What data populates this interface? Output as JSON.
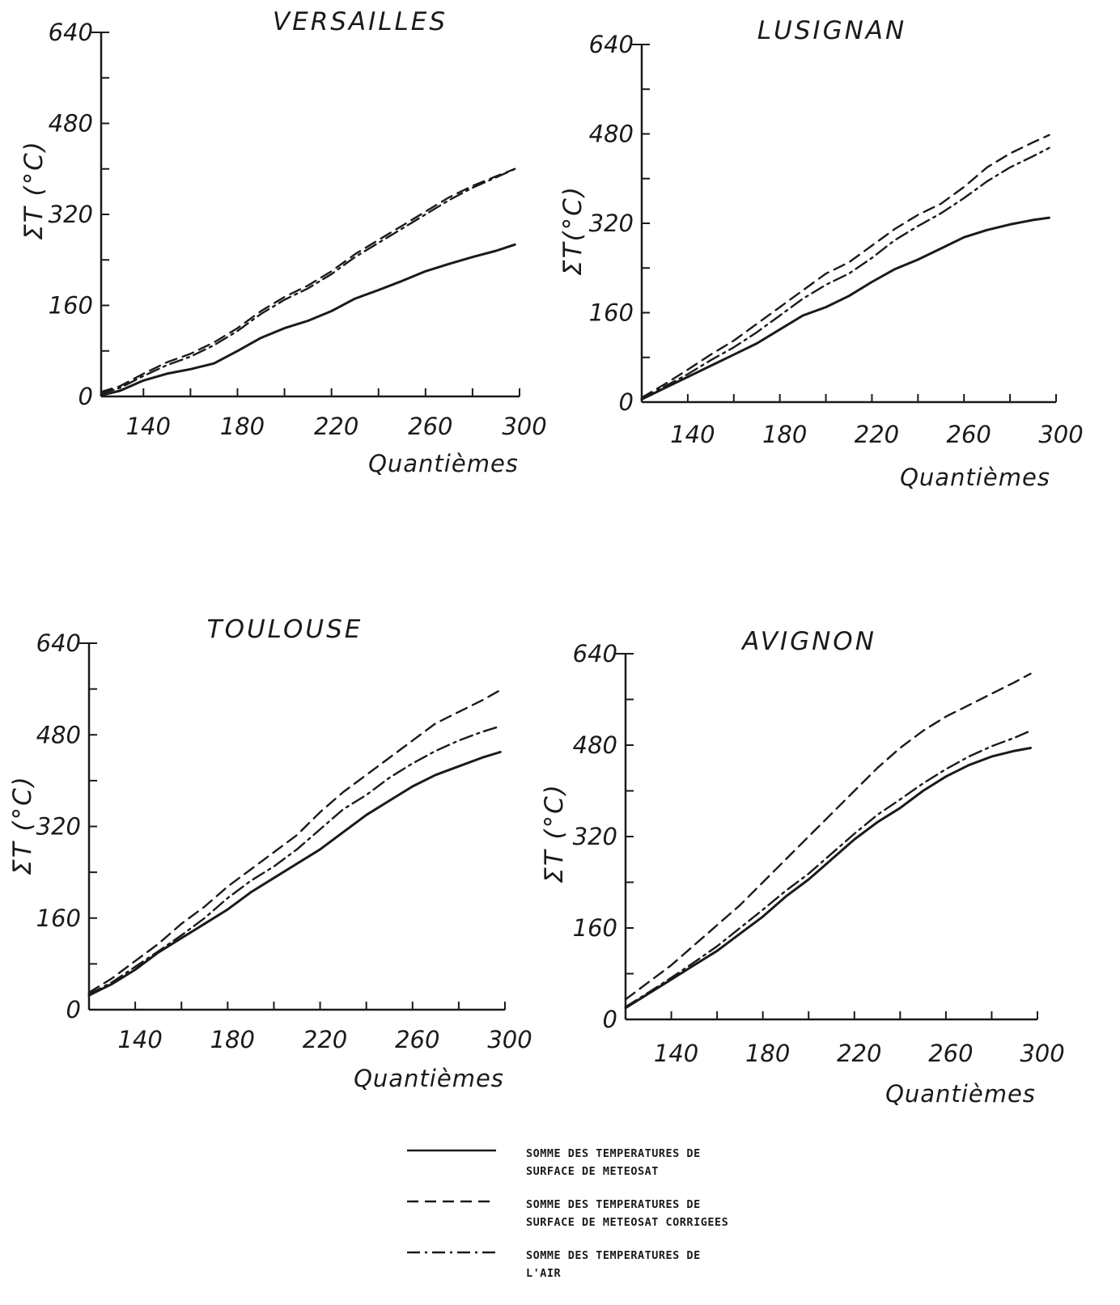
{
  "chart_data": [
    {
      "type": "line",
      "title": "VERSAILLES",
      "xlabel": "Quantièmes",
      "ylabel": "ΣT (°C)",
      "xlim": [
        122,
        300
      ],
      "ylim": [
        0,
        640
      ],
      "xticks": [
        140,
        180,
        220,
        260,
        300
      ],
      "yticks": [
        0,
        160,
        320,
        480,
        640
      ],
      "series": [
        {
          "key": "meteosat",
          "x": [
            122,
            130,
            140,
            150,
            160,
            170,
            180,
            190,
            200,
            210,
            220,
            230,
            240,
            250,
            260,
            270,
            280,
            290,
            298
          ],
          "values": [
            2,
            10,
            28,
            40,
            48,
            58,
            80,
            103,
            120,
            133,
            150,
            172,
            187,
            203,
            220,
            233,
            245,
            256,
            267
          ]
        },
        {
          "key": "meteosat_corrigees",
          "x": [
            122,
            130,
            140,
            150,
            160,
            170,
            180,
            190,
            200,
            210,
            220,
            230,
            240,
            250,
            260,
            270,
            280,
            290,
            298
          ],
          "values": [
            8,
            18,
            40,
            60,
            75,
            95,
            120,
            150,
            175,
            195,
            220,
            250,
            275,
            300,
            325,
            350,
            370,
            387,
            400
          ]
        },
        {
          "key": "air",
          "x": [
            122,
            130,
            140,
            150,
            160,
            170,
            180,
            190,
            200,
            210,
            220,
            230,
            240,
            250,
            260,
            270,
            280,
            290,
            298
          ],
          "values": [
            5,
            15,
            36,
            55,
            70,
            90,
            115,
            145,
            170,
            190,
            215,
            245,
            270,
            295,
            320,
            345,
            367,
            385,
            400
          ]
        }
      ]
    },
    {
      "type": "line",
      "title": "LUSIGNAN",
      "xlabel": "Quantièmes",
      "ylabel": "ΣT(°C)",
      "xlim": [
        120,
        300
      ],
      "ylim": [
        0,
        640
      ],
      "xticks": [
        140,
        180,
        220,
        260,
        300
      ],
      "yticks": [
        0,
        160,
        320,
        480,
        640
      ],
      "series": [
        {
          "key": "meteosat",
          "x": [
            120,
            130,
            140,
            150,
            160,
            170,
            180,
            190,
            200,
            210,
            220,
            230,
            240,
            250,
            260,
            270,
            280,
            290,
            297
          ],
          "values": [
            5,
            25,
            45,
            65,
            85,
            105,
            130,
            155,
            170,
            190,
            215,
            238,
            255,
            275,
            295,
            308,
            318,
            326,
            330
          ]
        },
        {
          "key": "meteosat_corrigees",
          "x": [
            120,
            130,
            140,
            150,
            160,
            170,
            180,
            190,
            200,
            210,
            220,
            230,
            240,
            250,
            260,
            270,
            280,
            290,
            297
          ],
          "values": [
            8,
            32,
            58,
            85,
            110,
            140,
            170,
            200,
            230,
            250,
            280,
            310,
            335,
            355,
            385,
            420,
            445,
            465,
            478
          ]
        },
        {
          "key": "air",
          "x": [
            120,
            130,
            140,
            150,
            160,
            170,
            180,
            190,
            200,
            210,
            220,
            230,
            240,
            250,
            260,
            270,
            280,
            290,
            297
          ],
          "values": [
            6,
            28,
            50,
            75,
            98,
            125,
            155,
            185,
            210,
            230,
            258,
            290,
            315,
            338,
            365,
            395,
            420,
            440,
            455
          ]
        }
      ]
    },
    {
      "type": "line",
      "title": "TOULOUSE",
      "xlabel": "Quantièmes",
      "ylabel": "ΣT (°C)",
      "xlim": [
        120,
        300
      ],
      "ylim": [
        0,
        640
      ],
      "xticks": [
        140,
        180,
        220,
        260,
        300
      ],
      "yticks": [
        0,
        160,
        320,
        480,
        640
      ],
      "series": [
        {
          "key": "meteosat",
          "x": [
            120,
            130,
            140,
            150,
            160,
            170,
            180,
            190,
            200,
            210,
            220,
            230,
            240,
            250,
            260,
            270,
            280,
            290,
            298
          ],
          "values": [
            25,
            45,
            70,
            100,
            125,
            150,
            175,
            205,
            230,
            255,
            280,
            310,
            340,
            365,
            390,
            410,
            425,
            440,
            450
          ]
        },
        {
          "key": "meteosat_corrigees",
          "x": [
            120,
            130,
            140,
            150,
            160,
            170,
            180,
            190,
            200,
            210,
            220,
            230,
            240,
            250,
            260,
            270,
            280,
            290,
            298
          ],
          "values": [
            30,
            55,
            85,
            115,
            150,
            180,
            215,
            245,
            275,
            305,
            345,
            380,
            410,
            440,
            470,
            500,
            520,
            540,
            558
          ]
        },
        {
          "key": "air",
          "x": [
            120,
            130,
            140,
            150,
            160,
            170,
            180,
            190,
            200,
            210,
            220,
            230,
            240,
            250,
            260,
            270,
            280,
            290,
            298
          ],
          "values": [
            27,
            48,
            75,
            102,
            130,
            160,
            195,
            225,
            250,
            280,
            315,
            350,
            375,
            405,
            430,
            452,
            470,
            485,
            495
          ]
        }
      ]
    },
    {
      "type": "line",
      "title": "AVIGNON",
      "xlabel": "Quantièmes",
      "ylabel": "ΣT (°C)",
      "xlim": [
        120,
        300
      ],
      "ylim": [
        0,
        640
      ],
      "xticks": [
        140,
        180,
        220,
        260,
        300
      ],
      "yticks": [
        0,
        160,
        320,
        480,
        640
      ],
      "series": [
        {
          "key": "meteosat",
          "x": [
            120,
            130,
            140,
            150,
            160,
            170,
            180,
            190,
            200,
            210,
            220,
            230,
            240,
            250,
            260,
            270,
            280,
            290,
            297
          ],
          "values": [
            20,
            45,
            70,
            95,
            120,
            150,
            180,
            215,
            245,
            280,
            315,
            345,
            370,
            400,
            425,
            445,
            460,
            470,
            475
          ]
        },
        {
          "key": "meteosat_corrigees",
          "x": [
            120,
            130,
            140,
            150,
            160,
            170,
            180,
            190,
            200,
            210,
            220,
            230,
            240,
            250,
            260,
            270,
            280,
            290,
            297
          ],
          "values": [
            35,
            65,
            95,
            130,
            165,
            200,
            240,
            280,
            320,
            360,
            400,
            440,
            475,
            505,
            530,
            550,
            570,
            590,
            605
          ]
        },
        {
          "key": "air",
          "x": [
            120,
            130,
            140,
            150,
            160,
            170,
            180,
            190,
            200,
            210,
            220,
            230,
            240,
            250,
            260,
            270,
            280,
            290,
            297
          ],
          "values": [
            22,
            47,
            73,
            100,
            128,
            160,
            192,
            225,
            255,
            290,
            325,
            358,
            385,
            413,
            438,
            460,
            478,
            493,
            505
          ]
        }
      ]
    }
  ],
  "legend": [
    {
      "key": "meteosat",
      "style": "solid",
      "lines": [
        "SOMME DES TEMPERATURES DE",
        "SURFACE DE METEOSAT"
      ]
    },
    {
      "key": "meteosat_corrigees",
      "style": "dashed",
      "lines": [
        "SOMME DES TEMPERATURES DE",
        "SURFACE DE METEOSAT CORRIGEES"
      ]
    },
    {
      "key": "air",
      "style": "dashdot",
      "lines": [
        "SOMME DES TEMPERATURES DE",
        "L'AIR"
      ]
    }
  ],
  "colors": {
    "ink": "#1a1a1a",
    "background": "#ffffff"
  }
}
